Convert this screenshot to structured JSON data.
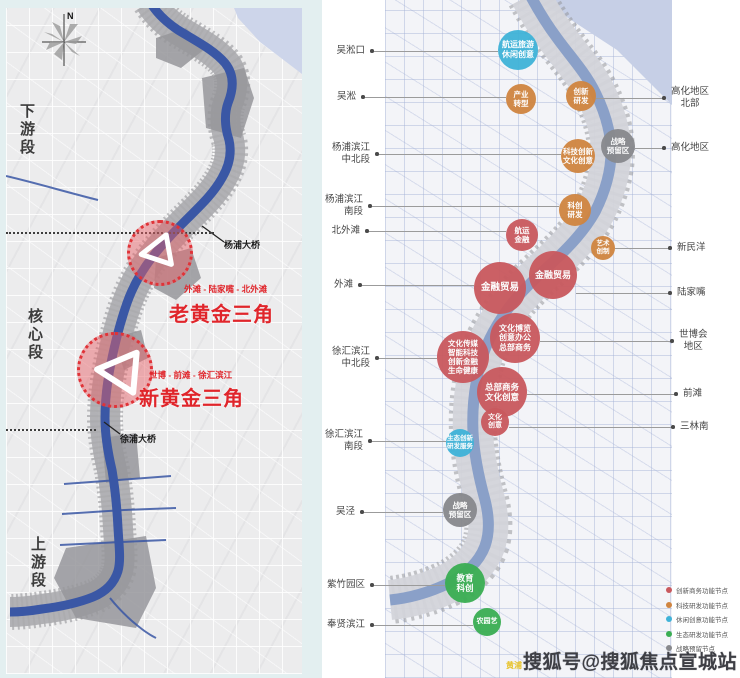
{
  "left_panel": {
    "compass": "N",
    "sections": [
      "下游段",
      "核心段",
      "上游段"
    ],
    "bridges": [
      "杨浦大桥",
      "徐浦大桥"
    ],
    "triangles": [
      {
        "tagline": "外滩 - 陆家嘴 - 北外滩",
        "title": "老黄金三角"
      },
      {
        "tagline": "世博 - 前滩 - 徐汇滨江",
        "title": "新黄金三角"
      }
    ]
  },
  "right_panel": {
    "left_labels": [
      [
        "吴淞口"
      ],
      [
        "吴淞"
      ],
      [
        "杨浦滨江",
        "中北段"
      ],
      [
        "杨浦滨江",
        "南段"
      ],
      [
        "北外滩"
      ],
      [
        "外滩"
      ],
      [
        "徐汇滨江",
        "中北段"
      ],
      [
        "徐汇滨江",
        "南段"
      ],
      [
        "吴泾"
      ],
      [
        "紫竹园区"
      ],
      [
        "奉贤滨江"
      ]
    ],
    "right_labels": [
      [
        "高化地区",
        "北部"
      ],
      [
        "高化地区"
      ],
      [
        "新民洋"
      ],
      [
        "陆家嘴"
      ],
      [
        "世博会",
        "地区"
      ],
      [
        "前滩"
      ],
      [
        "三林南"
      ]
    ],
    "nodes": [
      {
        "lines": [
          "航运旅游",
          "休闲创意"
        ],
        "category": "leisure"
      },
      {
        "lines": [
          "产业",
          "转型"
        ],
        "category": "tech"
      },
      {
        "lines": [
          "创新",
          "研发"
        ],
        "category": "tech"
      },
      {
        "lines": [
          "战略",
          "预留区"
        ],
        "category": "strategic"
      },
      {
        "lines": [
          "科技创新",
          "文化创意"
        ],
        "category": "tech"
      },
      {
        "lines": [
          "科创",
          "研发"
        ],
        "category": "tech"
      },
      {
        "lines": [
          "航运",
          "金融"
        ],
        "category": "business"
      },
      {
        "lines": [
          "艺术",
          "创制"
        ],
        "category": "tech"
      },
      {
        "lines": [
          "金融贸易"
        ],
        "category": "business"
      },
      {
        "lines": [
          "金融贸易"
        ],
        "category": "business"
      },
      {
        "lines": [
          "文化博览",
          "创意办公",
          "总部商务"
        ],
        "category": "business"
      },
      {
        "lines": [
          "文化传媒",
          "智能科技",
          "创新金融",
          "生命健康"
        ],
        "category": "business"
      },
      {
        "lines": [
          "总部商务",
          "文化创意"
        ],
        "category": "business"
      },
      {
        "lines": [
          "文化",
          "创意"
        ],
        "category": "business"
      },
      {
        "lines": [
          "生态创新",
          "研发服务"
        ],
        "category": "leisure"
      },
      {
        "lines": [
          "战略",
          "预留区"
        ],
        "category": "strategic"
      },
      {
        "lines": [
          "教育",
          "科创"
        ],
        "category": "eco"
      },
      {
        "lines": [
          "农园艺"
        ],
        "category": "eco"
      }
    ],
    "legend": [
      {
        "label": "创新商务功能节点",
        "category": "business"
      },
      {
        "label": "科技研发功能节点",
        "category": "tech"
      },
      {
        "label": "休闲创意功能节点",
        "category": "leisure"
      },
      {
        "label": "生态研发功能节点",
        "category": "eco"
      },
      {
        "label": "战略预留节点",
        "category": "strategic"
      }
    ]
  },
  "colors": {
    "business": "#c9595e",
    "tech": "#d08540",
    "leisure": "#3fb3d8",
    "eco": "#3aae53",
    "strategic": "#88898d",
    "river_left": "#3a57a5",
    "river_right": "#8aa0c8",
    "highlight_red": "#e0252b"
  },
  "watermark": {
    "prefix": "黄浦",
    "text": "搜狐号@搜狐焦点宣城站"
  }
}
